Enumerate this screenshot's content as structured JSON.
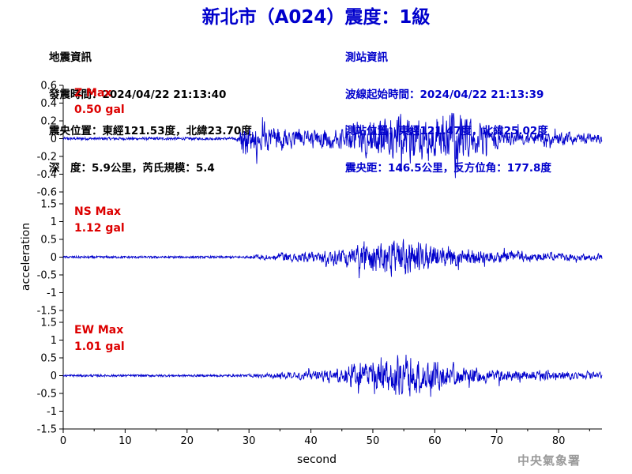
{
  "header": {
    "title": "新北市（A024）震度：1級"
  },
  "quake_info": {
    "heading": "地震資訊",
    "origin_time": "發震時間：2024/04/22 21:13:40",
    "epicenter": "震央位置：東經121.53度，北緯23.70度",
    "depth_magnitude": "深　度：5.9公里，芮氏規模：5.4"
  },
  "station_info": {
    "heading": "測站資訊",
    "wave_start": "波線起始時間：2024/04/22 21:13:39",
    "station_location": "測站位置：東經121.47度，北緯25.02度",
    "distance_azimuth": "震央距：146.5公里，反方位角：177.8度"
  },
  "footer": {
    "agency": "中央氣象署"
  },
  "chart_data": {
    "type": "line",
    "xlabel": "second",
    "ylabel": "acceleration",
    "xlim": [
      0,
      87
    ],
    "x_ticks": [
      0,
      10,
      20,
      30,
      40,
      50,
      60,
      70,
      80
    ],
    "line_color": "#0000cc",
    "label_color": "#dd0000",
    "grid": false,
    "series": [
      {
        "name": "Z",
        "max_label": "Z Max",
        "max_value": "0.50 gal",
        "ylim": [
          -0.6,
          0.6
        ],
        "y_ticks": [
          "0.6",
          "0.4",
          "0.2",
          "0",
          "-0.2",
          "-0.4",
          "-0.6"
        ],
        "noise_amp": 0.015,
        "onset": 28,
        "peak": 0.5,
        "envelope": [
          [
            0,
            0.02
          ],
          [
            28,
            0.03
          ],
          [
            29,
            0.26
          ],
          [
            34,
            0.22
          ],
          [
            40,
            0.16
          ],
          [
            44,
            0.2
          ],
          [
            50,
            0.34
          ],
          [
            56,
            0.4
          ],
          [
            60,
            0.4
          ],
          [
            63,
            0.46
          ],
          [
            67,
            0.28
          ],
          [
            72,
            0.16
          ],
          [
            80,
            0.12
          ],
          [
            87,
            0.07
          ]
        ]
      },
      {
        "name": "NS",
        "max_label": "NS Max",
        "max_value": "1.12 gal",
        "ylim": [
          -1.5,
          1.5
        ],
        "y_ticks": [
          "1.5",
          "1",
          "0.5",
          "0",
          "-0.5",
          "-1",
          "-1.5"
        ],
        "noise_amp": 0.03,
        "onset": 29,
        "peak": 1.12,
        "envelope": [
          [
            0,
            0.03
          ],
          [
            29,
            0.05
          ],
          [
            32,
            0.14
          ],
          [
            40,
            0.25
          ],
          [
            46,
            0.45
          ],
          [
            50,
            0.7
          ],
          [
            54,
            0.85
          ],
          [
            57,
            0.75
          ],
          [
            62,
            0.45
          ],
          [
            68,
            0.3
          ],
          [
            75,
            0.22
          ],
          [
            82,
            0.18
          ],
          [
            87,
            0.12
          ]
        ]
      },
      {
        "name": "EW",
        "max_label": "EW Max",
        "max_value": "1.01 gal",
        "ylim": [
          -1.5,
          1.5
        ],
        "y_ticks": [
          "1.5",
          "1",
          "0.5",
          "0",
          "-0.5",
          "-1",
          "-1.5"
        ],
        "noise_amp": 0.03,
        "onset": 29,
        "peak": 1.01,
        "envelope": [
          [
            0,
            0.03
          ],
          [
            29,
            0.05
          ],
          [
            34,
            0.12
          ],
          [
            40,
            0.2
          ],
          [
            45,
            0.38
          ],
          [
            49,
            0.72
          ],
          [
            53,
            0.85
          ],
          [
            58,
            0.75
          ],
          [
            62,
            0.5
          ],
          [
            67,
            0.34
          ],
          [
            74,
            0.26
          ],
          [
            82,
            0.2
          ],
          [
            87,
            0.14
          ]
        ]
      }
    ]
  }
}
